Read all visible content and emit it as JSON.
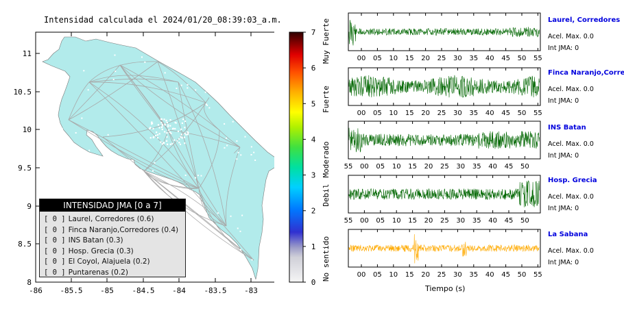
{
  "map": {
    "title": "Intensidad calculada el 2024/01/20_08:39:03_a.m.",
    "x_ticks": [
      "-86",
      "-85.5",
      "-85",
      "-84.5",
      "-84",
      "-83.5",
      "-83"
    ],
    "y_ticks": [
      "11",
      "10.5",
      "10",
      "9.5",
      "9",
      "8.5",
      "8"
    ],
    "land_color": "#b2ebeb"
  },
  "color_scale": {
    "ticks": [
      "7",
      "6",
      "5",
      "4",
      "3",
      "2",
      "1",
      "0"
    ],
    "category_labels": [
      "Muy Fuerte",
      "Fuerte",
      "Moderado",
      "Debil",
      "No sentido"
    ]
  },
  "legend": {
    "title": "INTENSIDAD JMA [0 a 7]",
    "items": [
      {
        "code": "[ 0 ]",
        "text": "Laurel, Corredores (0.6)"
      },
      {
        "code": "[ 0 ]",
        "text": "Finca Naranjo,Corredores (0.4)"
      },
      {
        "code": "[ 0 ]",
        "text": "INS Batan (0.3)"
      },
      {
        "code": "[ 0 ]",
        "text": "Hosp. Grecia (0.3)"
      },
      {
        "code": "[ 0 ]",
        "text": "El Coyol, Alajuela (0.2)"
      },
      {
        "code": "[ 0 ]",
        "text": "Puntarenas (0.2)"
      }
    ]
  },
  "waveforms": {
    "x_axis_label": "Tiempo (s)",
    "stations": [
      {
        "name": "Laurel, Corredores",
        "accel": "Acel. Max. 0.0",
        "int": "Int JMA: 0",
        "color": "#006600",
        "ticks": [
          "00",
          "05",
          "10",
          "15",
          "20",
          "25",
          "30",
          "35",
          "40",
          "45",
          "50",
          "55"
        ]
      },
      {
        "name": "Finca Naranjo,Corredores",
        "accel": "Acel. Max. 0.0",
        "int": "Int JMA: 0",
        "color": "#006600",
        "ticks": [
          "00",
          "05",
          "10",
          "15",
          "20",
          "25",
          "30",
          "35",
          "40",
          "45",
          "50",
          "55"
        ]
      },
      {
        "name": "INS Batan",
        "accel": "Acel. Max. 0.0",
        "int": "Int JMA: 0",
        "color": "#006600",
        "ticks": [
          "55",
          "00",
          "05",
          "10",
          "15",
          "20",
          "25",
          "30",
          "35",
          "40",
          "45",
          "50"
        ]
      },
      {
        "name": "Hosp. Grecia",
        "accel": "Acel. Max. 0.0",
        "int": "Int JMA: 0",
        "color": "#006600",
        "ticks": [
          "55",
          "00",
          "05",
          "10",
          "15",
          "20",
          "25",
          "30",
          "35",
          "40",
          "45",
          "50"
        ]
      },
      {
        "name": "La Sabana",
        "accel": "Acel. Max. 0.0",
        "int": "Int JMA: 0",
        "color": "#ffaa00",
        "ticks": [
          "00",
          "05",
          "10",
          "15",
          "20",
          "25",
          "30",
          "35",
          "40",
          "45",
          "50",
          "55"
        ]
      }
    ]
  },
  "chart_data": [
    {
      "type": "scatter",
      "title": "Intensidad calculada el 2024/01/20_08:39:03_a.m.",
      "xlim": [
        -86,
        -82.5
      ],
      "ylim": [
        8,
        11.3
      ],
      "x_ticks": [
        -86,
        -85.5,
        -85,
        -84.5,
        -84,
        -83.5,
        -83
      ],
      "y_ticks": [
        8,
        8.5,
        9,
        9.5,
        10,
        10.5,
        11
      ],
      "colorbar": {
        "range": [
          0,
          7
        ],
        "labels": [
          "No sentido",
          "Debil",
          "Moderado",
          "Fuerte",
          "Muy Fuerte"
        ]
      },
      "legend_placement": "bottom-left"
    },
    {
      "type": "line",
      "title": "",
      "xlabel": "Tiempo (s)",
      "series": [
        {
          "name": "Laurel, Corredores"
        },
        {
          "name": "Finca Naranjo,Corredores"
        },
        {
          "name": "INS Batan"
        },
        {
          "name": "Hosp. Grecia"
        },
        {
          "name": "La Sabana"
        }
      ]
    }
  ]
}
